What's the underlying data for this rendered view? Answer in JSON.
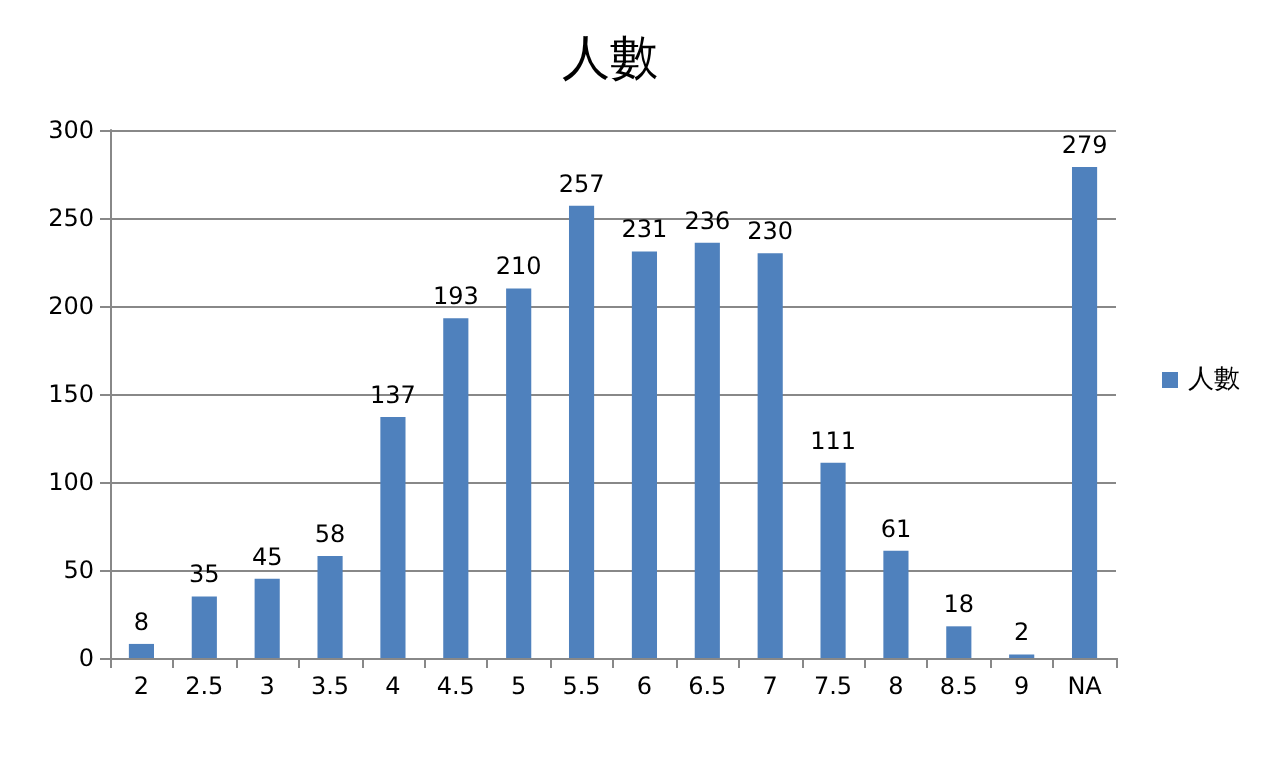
{
  "chart_data": {
    "type": "bar",
    "title": "人數",
    "categories": [
      "2",
      "2.5",
      "3",
      "3.5",
      "4",
      "4.5",
      "5",
      "5.5",
      "6",
      "6.5",
      "7",
      "7.5",
      "8",
      "8.5",
      "9",
      "NA"
    ],
    "series": [
      {
        "name": "人數",
        "color": "#4f81bd",
        "values": [
          8,
          35,
          45,
          58,
          137,
          193,
          210,
          257,
          231,
          236,
          230,
          111,
          61,
          18,
          2,
          279
        ]
      }
    ],
    "ylim": [
      0,
      300
    ],
    "yticks": [
      0,
      50,
      100,
      150,
      200,
      250,
      300
    ],
    "grid": "y",
    "legend": "right",
    "data_labels": true
  }
}
